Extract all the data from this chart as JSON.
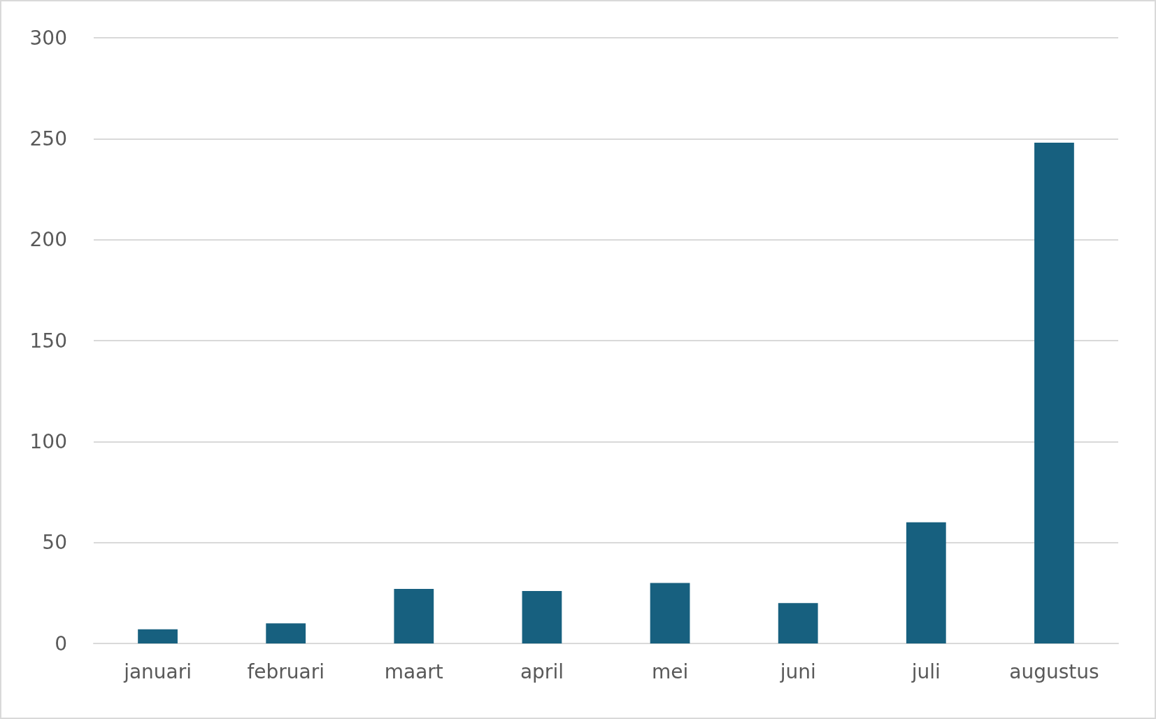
{
  "chart_data": {
    "type": "bar",
    "categories": [
      "januari",
      "februari",
      "maart",
      "april",
      "mei",
      "juni",
      "juli",
      "augustus"
    ],
    "values": [
      7,
      10,
      27,
      26,
      30,
      20,
      60,
      248
    ],
    "color": "#17607f",
    "ylim": [
      0,
      300
    ],
    "yticks": [
      0,
      50,
      100,
      150,
      200,
      250,
      300
    ],
    "grid": "y"
  }
}
